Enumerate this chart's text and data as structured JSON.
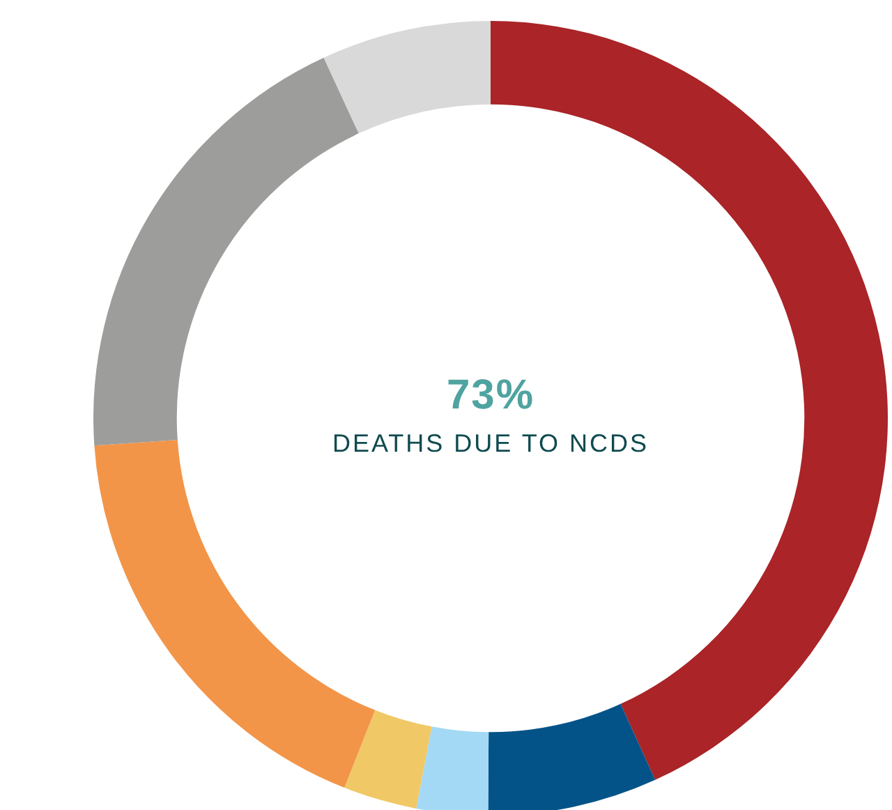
{
  "chart_data": {
    "type": "donut",
    "title": "73%",
    "subtitle": "DEATHS DUE TO NCDS",
    "categories": [
      null,
      null,
      null,
      null,
      null,
      null,
      null
    ],
    "values": [
      43.2,
      6.9,
      2.9,
      3.0,
      17.9,
      19.2,
      6.9
    ],
    "colors": [
      "#aa2428",
      "#035388",
      "#a3d9f5",
      "#f0c866",
      "#f29549",
      "#9d9d9b",
      "#d9d9d9"
    ],
    "legend": false
  }
}
